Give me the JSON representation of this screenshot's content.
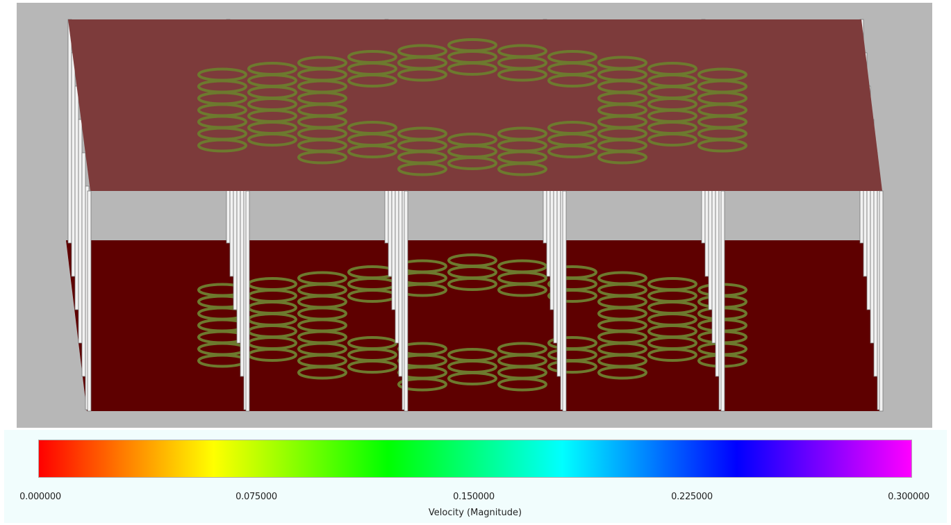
{
  "scene": {
    "background": "#b7b7b7",
    "top_plate_color": "#7d3b3b",
    "bottom_plate_color": "#5e0000",
    "ring_color": "#6d7a2e",
    "ring_inner_color": "#7d3b3b",
    "pillar_color": "#f2f2f2"
  },
  "legend": {
    "title": "Velocity (Magnitude)",
    "ticks": [
      "0.000000",
      "0.075000",
      "0.150000",
      "0.225000",
      "0.300000"
    ],
    "colormap": [
      "#ff0000",
      "#ff8000",
      "#ffff00",
      "#80ff00",
      "#00ff00",
      "#00ff80",
      "#00ffff",
      "#0080ff",
      "#0000ff",
      "#8000ff",
      "#ff00ff"
    ],
    "range": [
      0.0,
      0.3
    ]
  }
}
